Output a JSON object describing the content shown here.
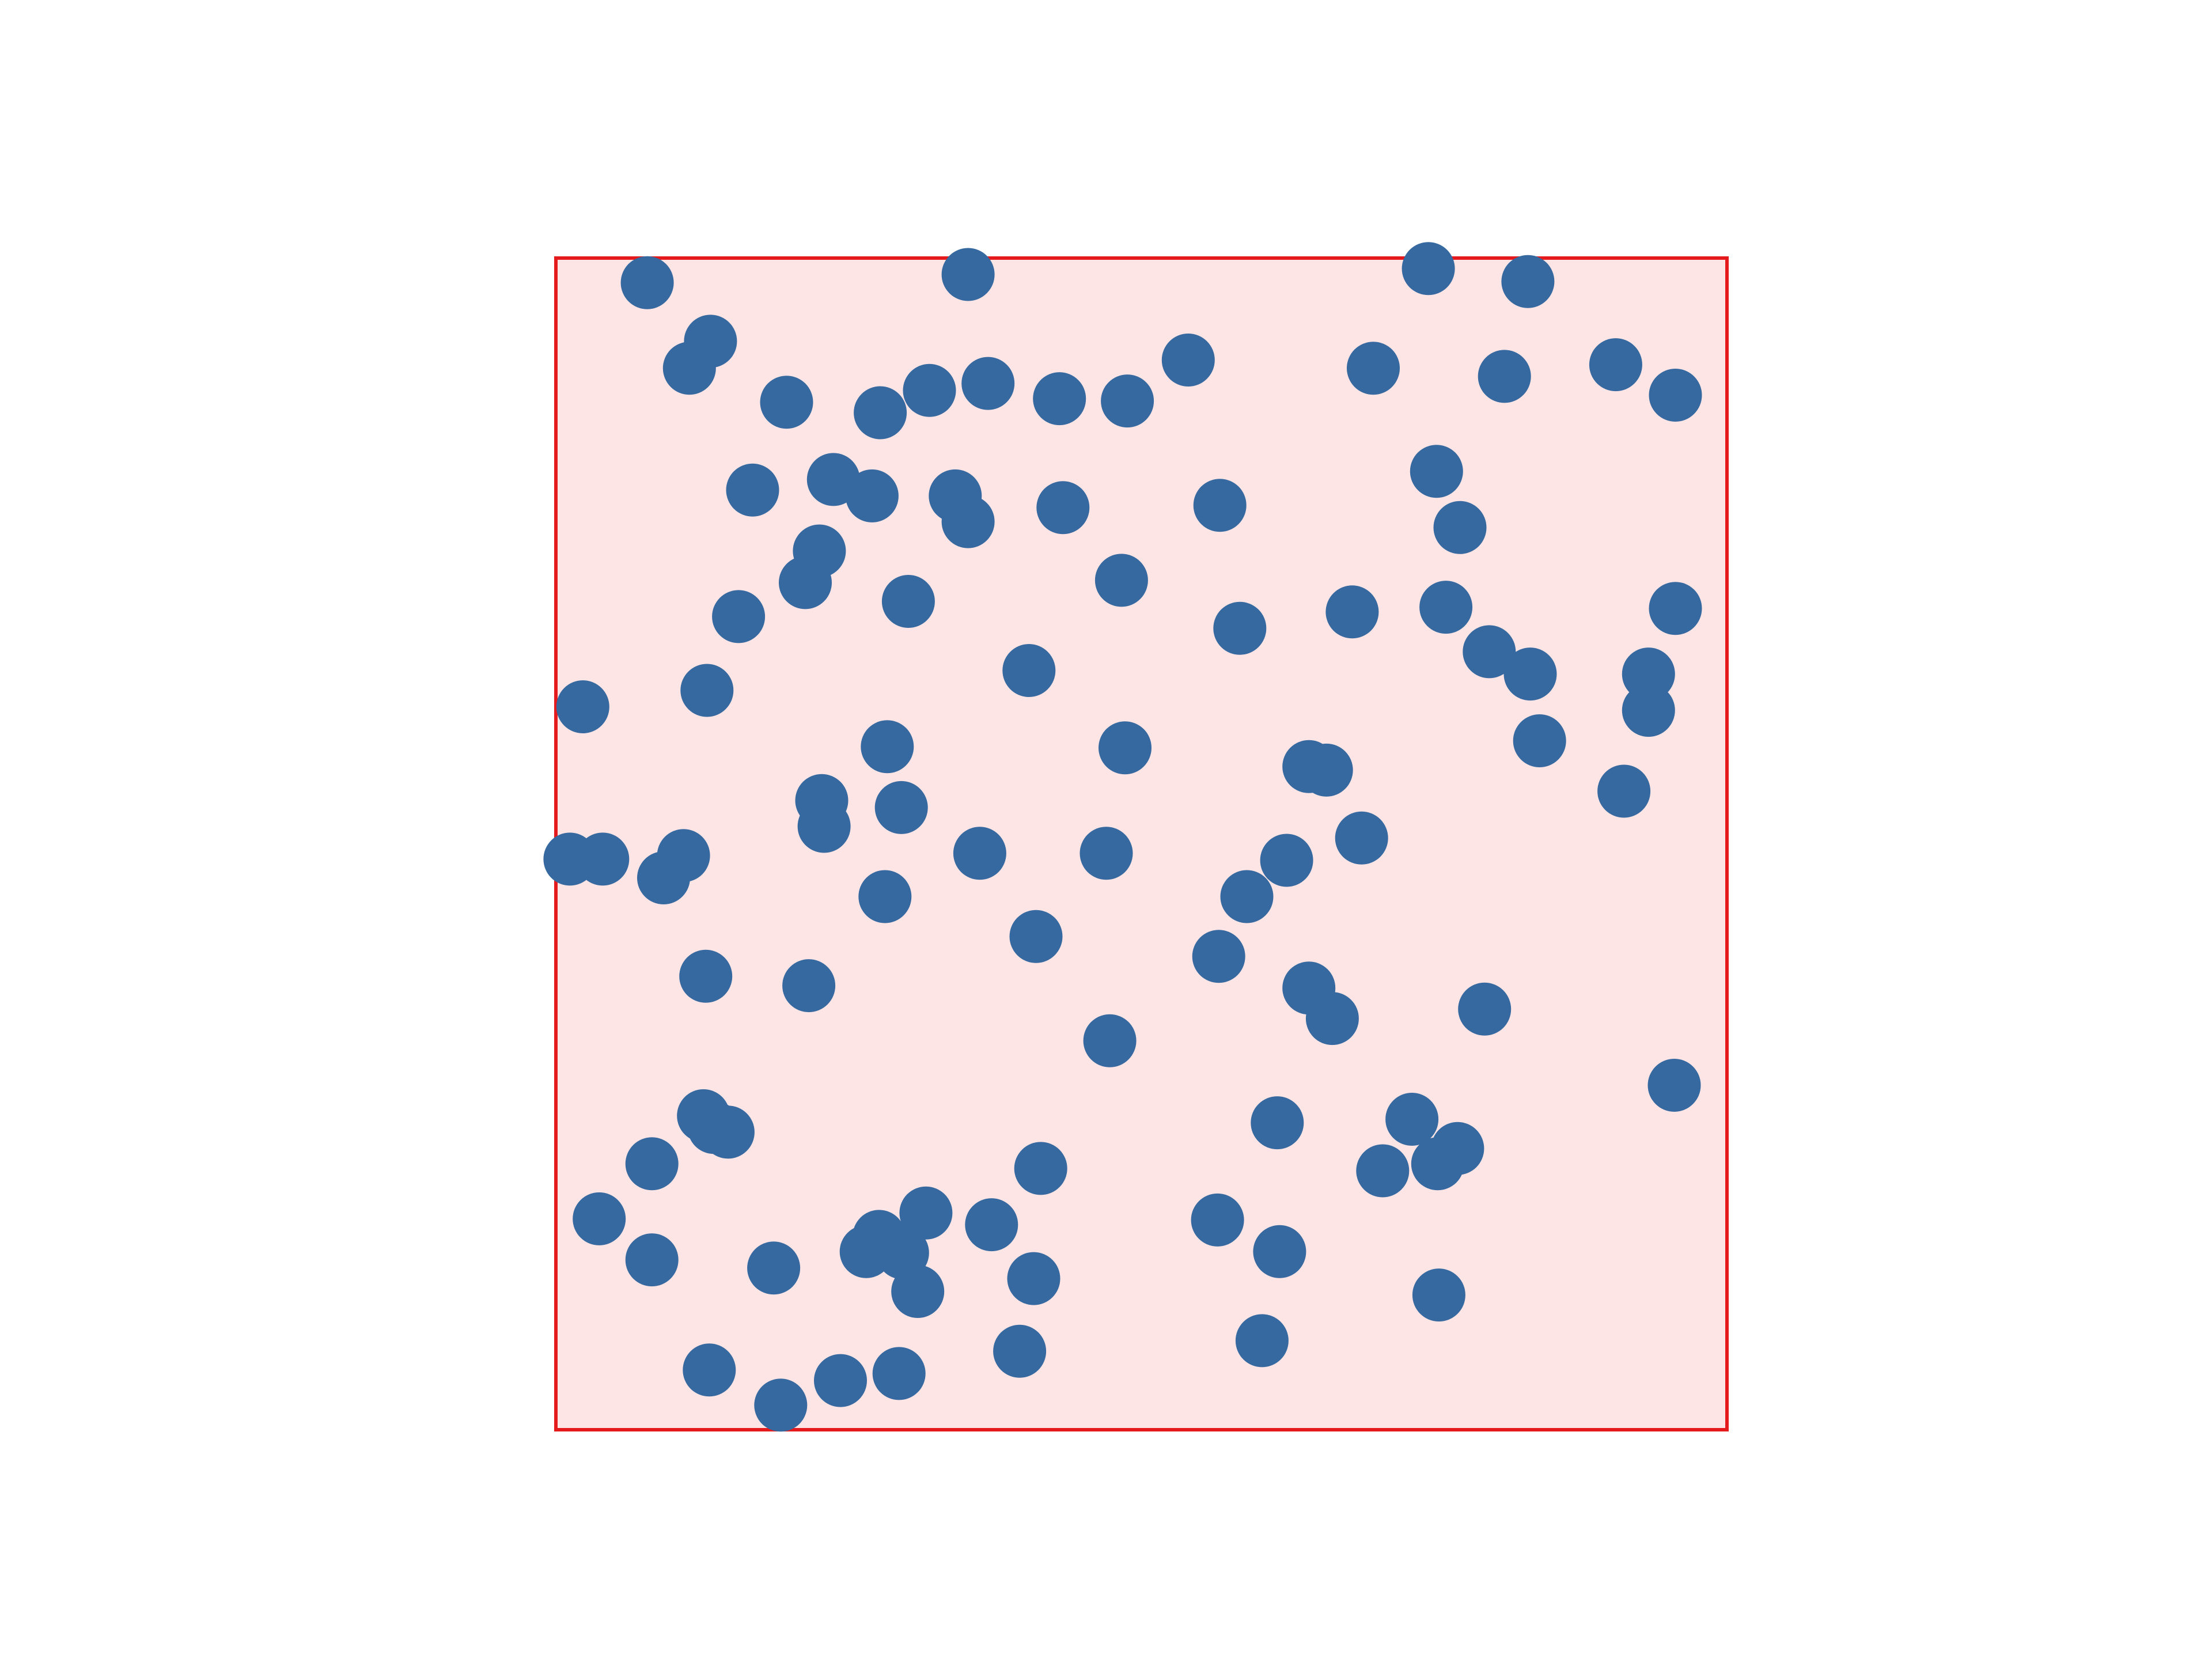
{
  "chart_data": {
    "type": "scatter",
    "title": "",
    "xlabel": "",
    "ylabel": "",
    "xlim": [
      0,
      1
    ],
    "ylim": [
      0,
      1
    ],
    "axes_visible": false,
    "grid": false,
    "legend": "none",
    "region": {
      "x": [
        0,
        1
      ],
      "y": [
        0,
        1
      ]
    },
    "colors": {
      "marker": "#3669a0",
      "region_fill": "#fee5e5",
      "region_edge": "#e41a1c",
      "background": "#ffffff"
    },
    "series": [
      {
        "points": [
          [
            0.078,
            0.979
          ],
          [
            0.352,
            0.986
          ],
          [
            0.745,
            0.991
          ],
          [
            0.83,
            0.98
          ],
          [
            0.132,
            0.929
          ],
          [
            0.114,
            0.906
          ],
          [
            0.197,
            0.877
          ],
          [
            0.277,
            0.868
          ],
          [
            0.319,
            0.887
          ],
          [
            0.369,
            0.893
          ],
          [
            0.43,
            0.88
          ],
          [
            0.488,
            0.878
          ],
          [
            0.54,
            0.913
          ],
          [
            0.698,
            0.906
          ],
          [
            0.81,
            0.899
          ],
          [
            0.905,
            0.909
          ],
          [
            0.956,
            0.883
          ],
          [
            0.168,
            0.802
          ],
          [
            0.237,
            0.811
          ],
          [
            0.27,
            0.797
          ],
          [
            0.341,
            0.797
          ],
          [
            0.352,
            0.775
          ],
          [
            0.433,
            0.787
          ],
          [
            0.483,
            0.725
          ],
          [
            0.567,
            0.789
          ],
          [
            0.752,
            0.818
          ],
          [
            0.772,
            0.77
          ],
          [
            0.225,
            0.75
          ],
          [
            0.213,
            0.723
          ],
          [
            0.301,
            0.707
          ],
          [
            0.156,
            0.694
          ],
          [
            0.584,
            0.684
          ],
          [
            0.68,
            0.698
          ],
          [
            0.76,
            0.702
          ],
          [
            0.797,
            0.664
          ],
          [
            0.832,
            0.645
          ],
          [
            0.956,
            0.701
          ],
          [
            0.933,
            0.645
          ],
          [
            0.933,
            0.614
          ],
          [
            0.023,
            0.617
          ],
          [
            0.129,
            0.631
          ],
          [
            0.404,
            0.648
          ],
          [
            0.283,
            0.583
          ],
          [
            0.486,
            0.582
          ],
          [
            0.643,
            0.566
          ],
          [
            0.658,
            0.563
          ],
          [
            0.84,
            0.588
          ],
          [
            0.227,
            0.537
          ],
          [
            0.229,
            0.515
          ],
          [
            0.295,
            0.531
          ],
          [
            0.912,
            0.545
          ],
          [
            0.012,
            0.487
          ],
          [
            0.04,
            0.487
          ],
          [
            0.109,
            0.49
          ],
          [
            0.092,
            0.471
          ],
          [
            0.362,
            0.492
          ],
          [
            0.47,
            0.492
          ],
          [
            0.281,
            0.455
          ],
          [
            0.624,
            0.486
          ],
          [
            0.59,
            0.455
          ],
          [
            0.688,
            0.505
          ],
          [
            0.41,
            0.421
          ],
          [
            0.566,
            0.404
          ],
          [
            0.128,
            0.387
          ],
          [
            0.216,
            0.379
          ],
          [
            0.643,
            0.377
          ],
          [
            0.663,
            0.351
          ],
          [
            0.793,
            0.359
          ],
          [
            0.473,
            0.332
          ],
          [
            0.955,
            0.294
          ],
          [
            0.126,
            0.268
          ],
          [
            0.135,
            0.258
          ],
          [
            0.147,
            0.254
          ],
          [
            0.082,
            0.227
          ],
          [
            0.616,
            0.262
          ],
          [
            0.731,
            0.265
          ],
          [
            0.77,
            0.24
          ],
          [
            0.753,
            0.227
          ],
          [
            0.414,
            0.223
          ],
          [
            0.706,
            0.221
          ],
          [
            0.037,
            0.18
          ],
          [
            0.316,
            0.185
          ],
          [
            0.276,
            0.165
          ],
          [
            0.265,
            0.152
          ],
          [
            0.296,
            0.151
          ],
          [
            0.372,
            0.175
          ],
          [
            0.565,
            0.179
          ],
          [
            0.082,
            0.145
          ],
          [
            0.186,
            0.138
          ],
          [
            0.309,
            0.118
          ],
          [
            0.408,
            0.129
          ],
          [
            0.618,
            0.152
          ],
          [
            0.754,
            0.115
          ],
          [
            0.131,
            0.051
          ],
          [
            0.243,
            0.042
          ],
          [
            0.293,
            0.048
          ],
          [
            0.396,
            0.067
          ],
          [
            0.603,
            0.076
          ],
          [
            0.192,
            0.021
          ]
        ]
      }
    ]
  }
}
